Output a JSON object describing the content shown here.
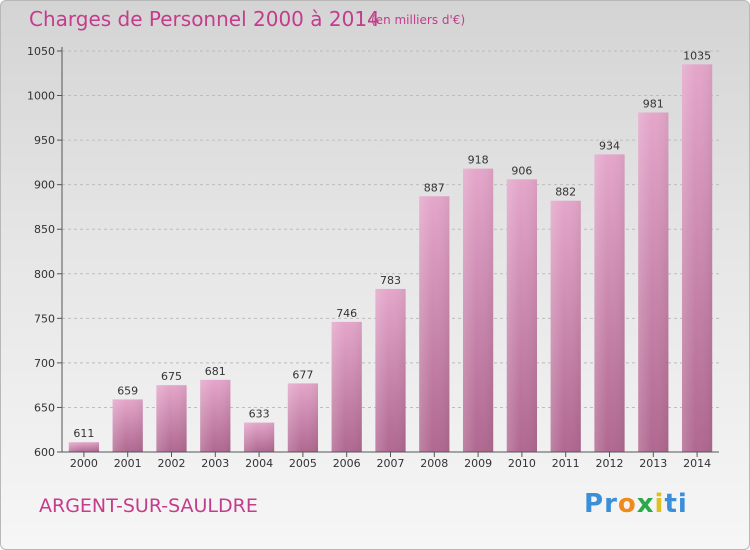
{
  "header": {
    "title": "Charges de Personnel 2000 à 2014",
    "subtitle": "(en milliers d'€)"
  },
  "footer": {
    "town": "ARGENT-SUR-SAULDRE",
    "logo_letters": [
      "P",
      "r",
      "o",
      "x",
      "i",
      "t",
      "i"
    ],
    "logo_colors": [
      "#3a8fd8",
      "#3a8fd8",
      "#f08a1c",
      "#2aa84a",
      "#e0c020",
      "#3a8fd8",
      "#3a8fd8"
    ]
  },
  "chart_data": {
    "type": "bar",
    "title": "Charges de Personnel 2000 à 2014",
    "subtitle": "(en milliers d'€)",
    "categories": [
      "2000",
      "2001",
      "2002",
      "2003",
      "2004",
      "2005",
      "2006",
      "2007",
      "2008",
      "2009",
      "2010",
      "2011",
      "2012",
      "2013",
      "2014"
    ],
    "values": [
      611,
      659,
      675,
      681,
      633,
      677,
      746,
      783,
      887,
      918,
      906,
      882,
      934,
      981,
      1035
    ],
    "ylim": [
      600,
      1050
    ],
    "yticks": [
      600,
      650,
      700,
      750,
      800,
      850,
      900,
      950,
      1000,
      1050
    ],
    "grid": true,
    "bar_color_top": "#e4a6ca",
    "bar_color_bottom": "#b06890"
  }
}
